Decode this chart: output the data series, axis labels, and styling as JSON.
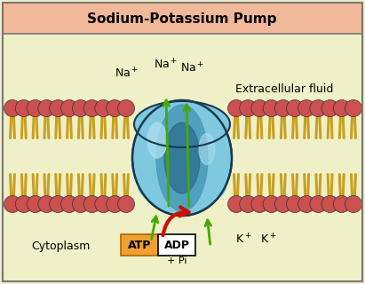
{
  "title": "Sodium-Potassium Pump",
  "title_bg": "#f2b89a",
  "bg_color": "#f0f0c8",
  "border_color": "#777777",
  "phospholipid_head_color": "#cc5050",
  "phospholipid_head_outline": "#222222",
  "phospholipid_tail_color": "#c8a020",
  "protein_light": "#7ec8e0",
  "protein_mid": "#4a9ab8",
  "protein_dark": "#2a6a88",
  "protein_outline": "#1a3a50",
  "arrow_green": "#44aa00",
  "arrow_red": "#cc1100",
  "atp_box_color": "#f0a030",
  "adp_box_color": "#ffffff",
  "label_atp": "ATP",
  "label_adp": "ADP",
  "label_pi": "+ Pi",
  "label_cytoplasm": "Cytoplasm",
  "label_extracellular": "Extracellular fluid",
  "font_size_title": 11,
  "font_size_labels": 8
}
